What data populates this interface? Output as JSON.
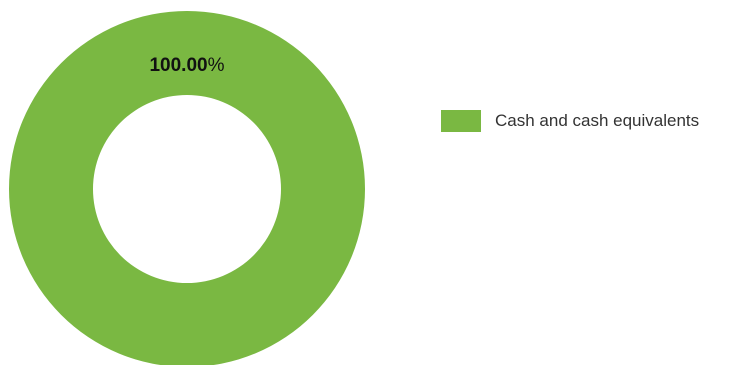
{
  "chart_data": {
    "type": "pie",
    "variant": "donut",
    "title": "",
    "categories": [
      "Cash and cash equivalents"
    ],
    "values": [
      100.0
    ],
    "data_labels": [
      {
        "value": "100.00",
        "unit": "%"
      }
    ],
    "colors": [
      "#7ab842"
    ],
    "legend_position": "right"
  }
}
